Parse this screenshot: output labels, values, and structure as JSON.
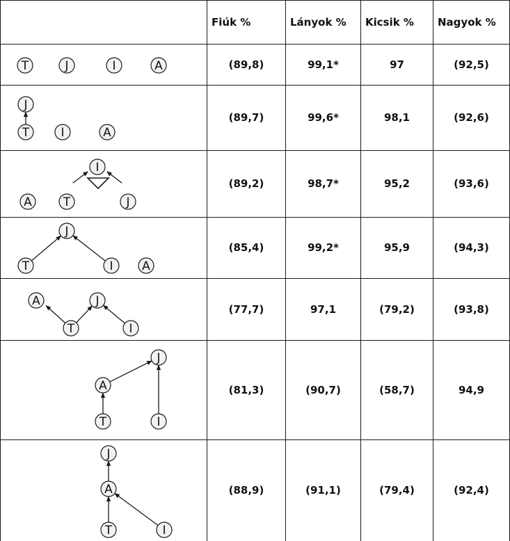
{
  "headers": [
    "",
    "Fiúk %",
    "Lányok %",
    "Kicsik %",
    "Nagyok %"
  ],
  "rows": [
    {
      "diagram": "d1",
      "values": [
        "(89,8)",
        "99,1*",
        "97",
        "(92,5)"
      ]
    },
    {
      "diagram": "d2",
      "values": [
        "(89,7)",
        "99,6*",
        "98,1",
        "(92,6)"
      ]
    },
    {
      "diagram": "d3",
      "values": [
        "(89,2)",
        "98,7*",
        "95,2",
        "(93,6)"
      ]
    },
    {
      "diagram": "d4",
      "values": [
        "(85,4)",
        "99,2*",
        "95,9",
        "(94,3)"
      ]
    },
    {
      "diagram": "d5",
      "values": [
        "(77,7)",
        "97,1",
        "(79,2)",
        "(93,8)"
      ]
    },
    {
      "diagram": "d6",
      "values": [
        "(81,3)",
        "(90,7)",
        "(58,7)",
        "94,9"
      ]
    },
    {
      "diagram": "d7",
      "values": [
        "(88,9)",
        "(91,1)",
        "(79,4)",
        "(92,4)"
      ]
    }
  ],
  "node_labels": {
    "T": "T",
    "J": "J",
    "I": "I",
    "A": "A"
  },
  "colors": {
    "node_fill": "#f2f2f2",
    "line": "#1a1a1a"
  }
}
